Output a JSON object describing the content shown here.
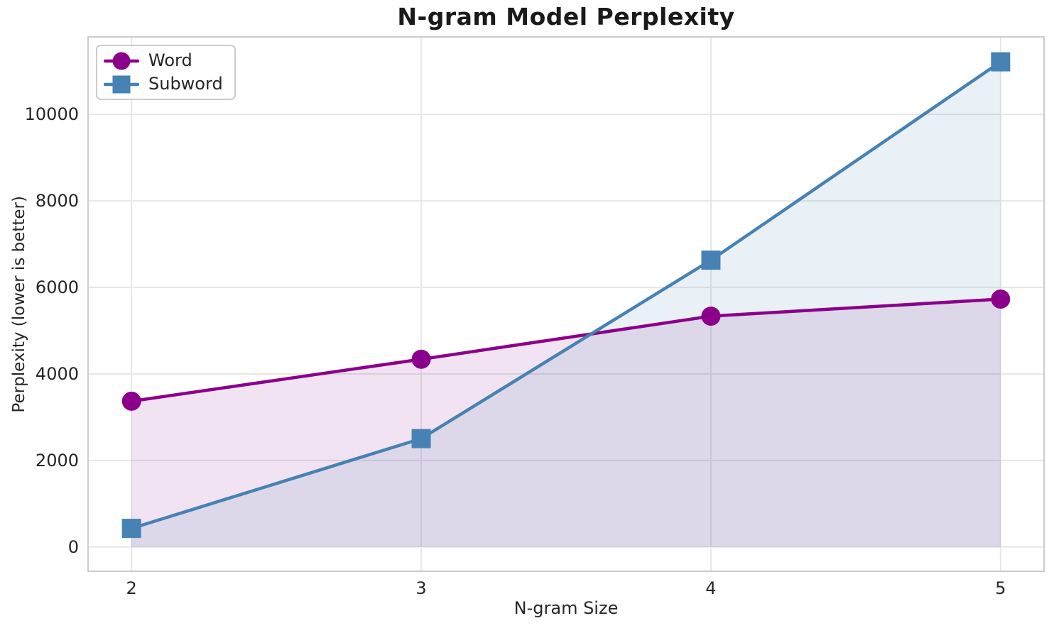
{
  "chart_data": {
    "type": "line",
    "title": "N-gram Model Perplexity",
    "xlabel": "N-gram Size",
    "ylabel": "Perplexity (lower is better)",
    "x": [
      2,
      3,
      4,
      5
    ],
    "series": [
      {
        "name": "Word",
        "marker": "circle",
        "color": "#8B008B",
        "fill_opacity": 0.11,
        "values": [
          3370,
          4340,
          5335,
          5730
        ]
      },
      {
        "name": "Subword",
        "marker": "square",
        "color": "#4682B4",
        "fill_opacity": 0.12,
        "values": [
          430,
          2505,
          6630,
          11215
        ]
      }
    ],
    "fill_baseline": 0,
    "xticks": [
      2,
      3,
      4,
      5
    ],
    "yticks": [
      0,
      2000,
      4000,
      6000,
      8000,
      10000
    ],
    "xlim": [
      1.85,
      5.15
    ],
    "ylim": [
      -561,
      11791
    ],
    "grid": true,
    "legend_position": "upper left"
  },
  "style": {
    "grid_color": "#e7e7e7",
    "spine_color": "#cccccc",
    "tick_color": "#262626",
    "title_color": "#1a1a1a",
    "background": "#ffffff"
  }
}
